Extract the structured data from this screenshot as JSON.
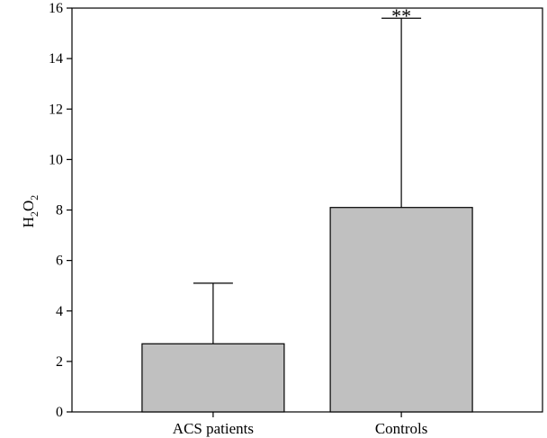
{
  "chart_data": {
    "type": "bar",
    "categories": [
      "ACS patients",
      "Controls"
    ],
    "values": [
      2.7,
      8.1
    ],
    "error_upper": [
      5.1,
      15.6
    ],
    "ylabel": {
      "main": "H",
      "sub1": "2",
      "mid": "O",
      "sub2": "2"
    },
    "ylim": [
      0,
      16
    ],
    "yticks": [
      "0",
      "2",
      "4",
      "6",
      "8",
      "10",
      "12",
      "14",
      "16"
    ],
    "annotations": [
      {
        "category": "Controls",
        "text": "**"
      }
    ],
    "bar_color": "#c0c0c0",
    "edge_color": "#000000",
    "grid": false
  }
}
